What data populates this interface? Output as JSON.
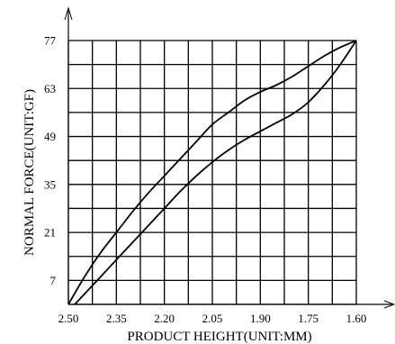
{
  "chart_data": {
    "type": "line",
    "title": "",
    "xlabel": "PRODUCT  HEIGHT(UNIT:MM)",
    "ylabel": "NORMAL  FORCE(UNIT:GF)",
    "x_reversed": true,
    "xlim": [
      2.5,
      1.6
    ],
    "ylim": [
      0,
      77
    ],
    "x_ticks": [
      "2.50",
      "2.35",
      "2.20",
      "2.05",
      "1.90",
      "1.75",
      "1.60"
    ],
    "y_ticks": [
      "7",
      "21",
      "35",
      "49",
      "63",
      "77"
    ],
    "grid": true,
    "series": [
      {
        "x": [
          2.5,
          2.45,
          2.4,
          2.35,
          2.3,
          2.25,
          2.2,
          2.15,
          2.1,
          2.05,
          2.0,
          1.95,
          1.9,
          1.85,
          1.8,
          1.75,
          1.7,
          1.65,
          1.6
        ],
        "y": [
          0,
          8,
          15,
          21,
          27,
          32.5,
          37.5,
          42.5,
          47.5,
          52.5,
          56,
          59.5,
          62,
          64,
          66.5,
          69.5,
          72.5,
          75,
          77
        ]
      },
      {
        "x": [
          2.48,
          2.45,
          2.4,
          2.35,
          2.3,
          2.25,
          2.2,
          2.15,
          2.1,
          2.05,
          2.0,
          1.95,
          1.9,
          1.85,
          1.8,
          1.75,
          1.7,
          1.65,
          1.6
        ],
        "y": [
          0,
          3,
          8,
          13,
          18,
          23,
          28,
          33,
          37.5,
          41.5,
          45,
          48,
          50.5,
          53,
          55.5,
          59,
          64,
          70,
          77
        ]
      }
    ]
  }
}
